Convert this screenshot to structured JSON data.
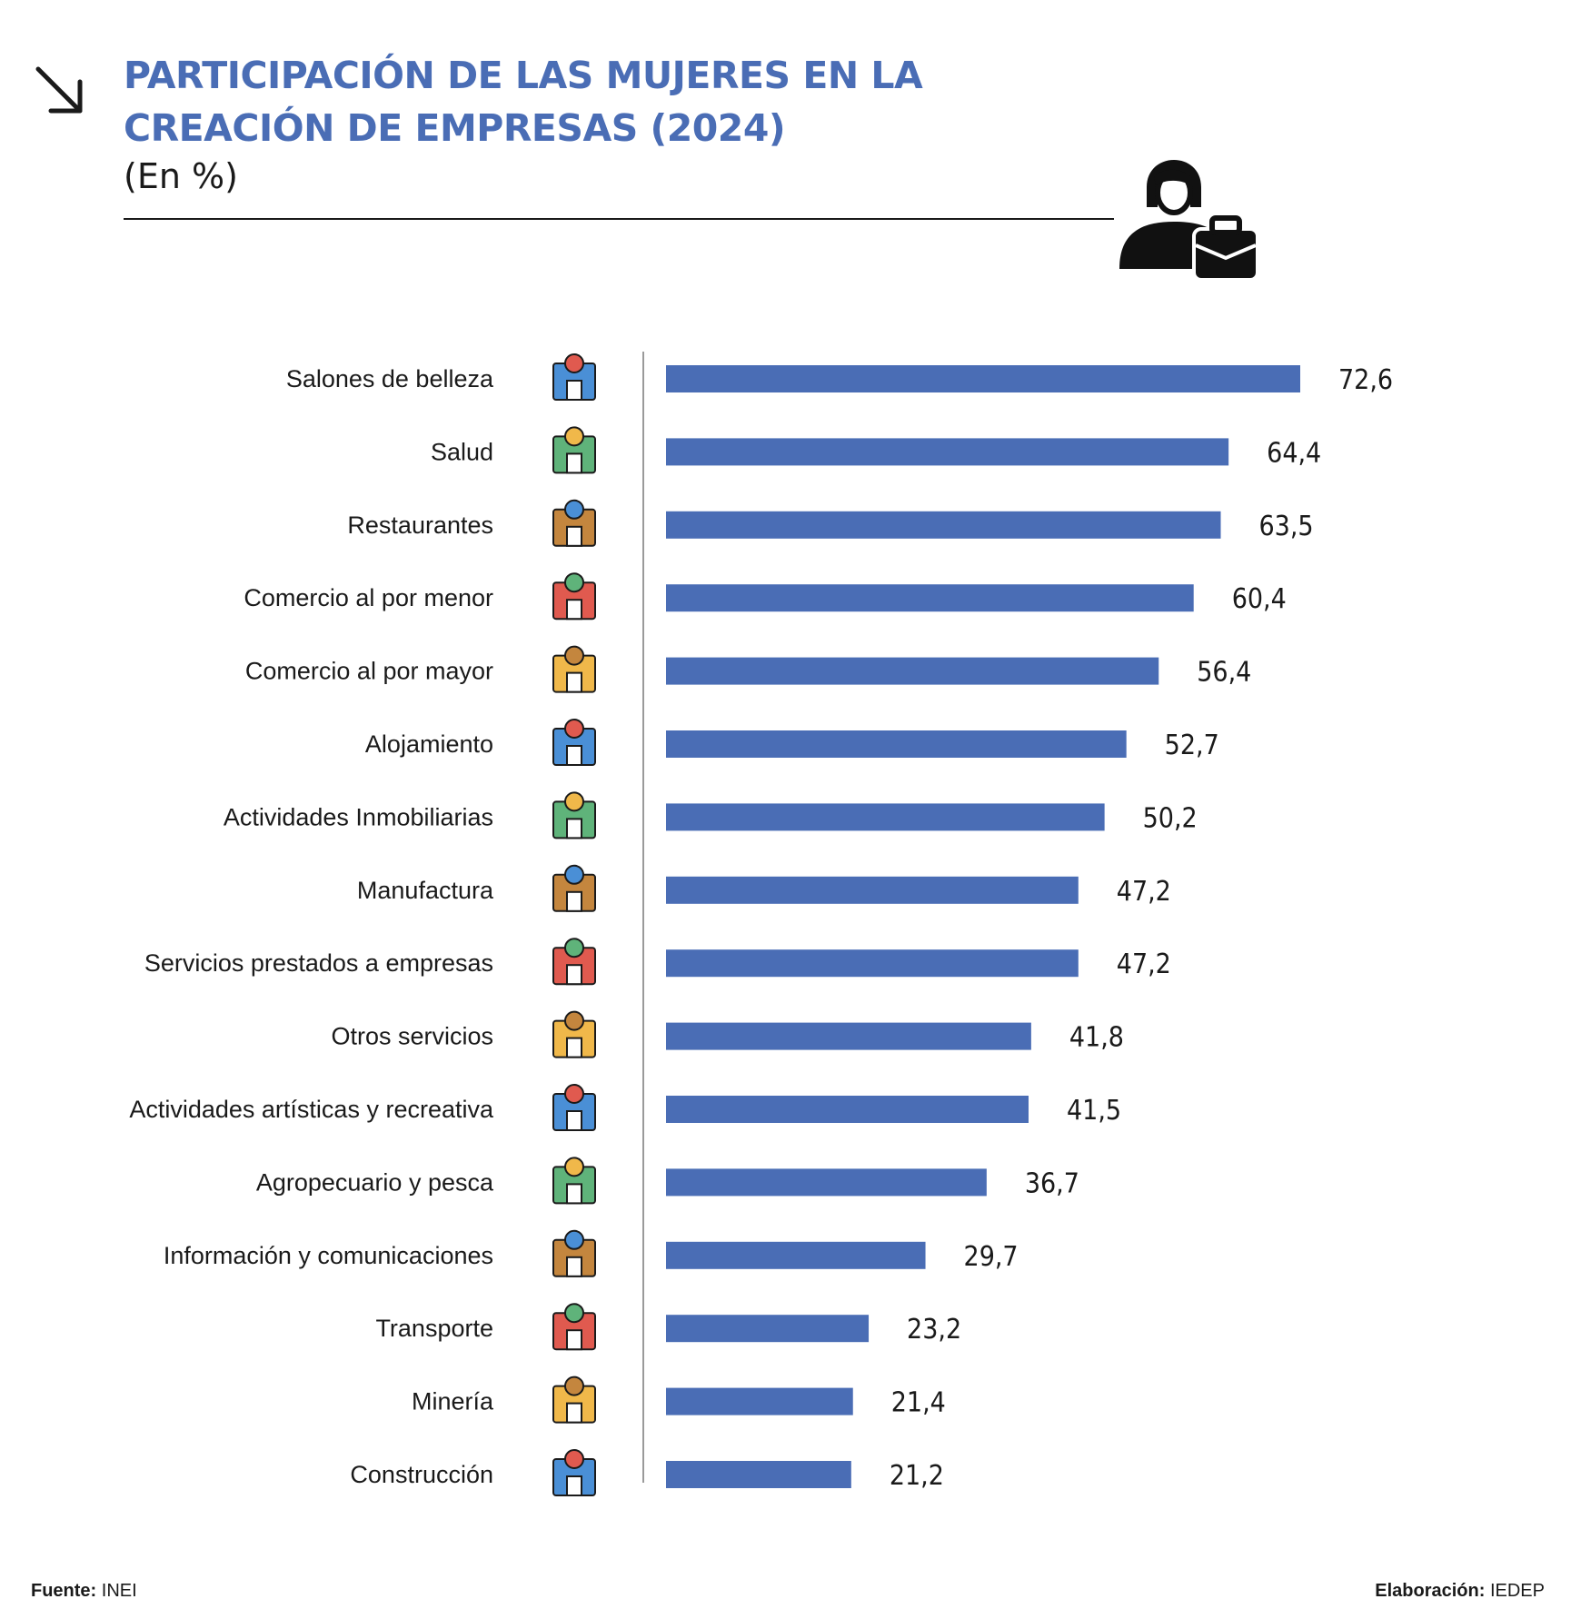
{
  "header": {
    "title": "PARTICIPACIÓN DE LAS MUJERES EN LA CREACIÓN DE EMPRESAS (2024)",
    "subtitle": "(En %)"
  },
  "chart_data": {
    "type": "bar",
    "orientation": "horizontal",
    "title": "PARTICIPACIÓN DE LAS MUJERES EN LA CREACIÓN DE EMPRESAS (2024)",
    "subtitle": "(En %)",
    "bar_color": "#4a6db5",
    "categories": [
      "Salones de belleza",
      "Salud",
      "Restaurantes",
      "Comercio al por menor",
      "Comercio al por mayor",
      "Alojamiento",
      "Actividades Inmobiliarias",
      "Manufactura",
      "Servicios prestados a empresas",
      "Otros servicios",
      "Actividades artísticas y recreativa",
      "Agropecuario y pesca",
      "Información y comunicaciones",
      "Transporte",
      "Minería",
      "Construcción"
    ],
    "values": [
      72.6,
      64.4,
      63.5,
      60.4,
      56.4,
      52.7,
      50.2,
      47.2,
      47.2,
      41.8,
      41.5,
      36.7,
      29.7,
      23.2,
      21.4,
      21.2
    ],
    "value_labels": [
      "72,6",
      "64,4",
      "63,5",
      "60,4",
      "56,4",
      "52,7",
      "50,2",
      "47,2",
      "47,2",
      "41,8",
      "41,5",
      "36,7",
      "29,7",
      "23,2",
      "21,4",
      "21,2"
    ],
    "icons": [
      "beauty-salon-icon",
      "health-shield-icon",
      "restaurant-icon",
      "retail-store-icon",
      "wholesale-icon",
      "accommodation-icon",
      "real-estate-handshake-icon",
      "manufacturing-icon",
      "call-center-icon",
      "services-hand-icon",
      "arts-icon",
      "fishing-boat-icon",
      "communication-icon",
      "transport-icon",
      "mining-icon",
      "construction-icon"
    ],
    "xlim": [
      0,
      72.6
    ],
    "grid": false,
    "legend": "none"
  },
  "footer": {
    "source_label": "Fuente:",
    "source_value": "INEI",
    "credit_label": "Elaboración:",
    "credit_value": "IEDEP"
  }
}
